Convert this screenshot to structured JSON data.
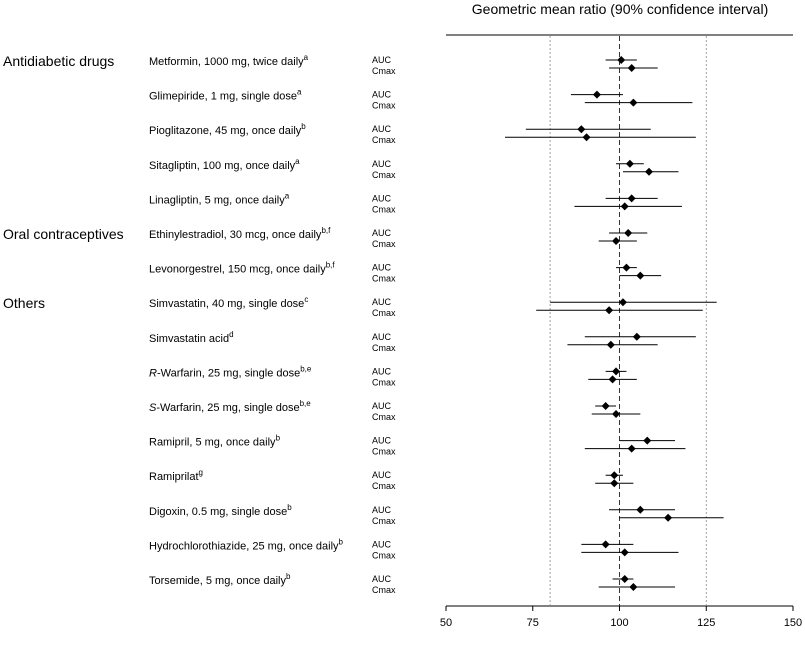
{
  "chart_data": {
    "type": "forest",
    "title": "Geometric mean ratio (90% confidence interval)",
    "xlim": [
      50,
      150
    ],
    "x_ticks": [
      "50",
      "75",
      "100",
      "125",
      "150"
    ],
    "reference_line": 100,
    "bound_lines": [
      80,
      125
    ],
    "metric_labels": [
      "AUC",
      "Cmax"
    ],
    "groups": [
      {
        "name": "Antidiabetic drugs",
        "drugs": [
          {
            "label": "Metformin, 1000 mg, twice daily",
            "sup": "a",
            "auc": {
              "gmr": 100.5,
              "lo": 96,
              "hi": 105
            },
            "cmax": {
              "gmr": 103.5,
              "lo": 97,
              "hi": 111
            }
          },
          {
            "label": "Glimepiride, 1 mg, single dose",
            "sup": "a",
            "auc": {
              "gmr": 93.5,
              "lo": 86,
              "hi": 101
            },
            "cmax": {
              "gmr": 104,
              "lo": 90,
              "hi": 121
            }
          },
          {
            "label": "Pioglitazone, 45 mg, once daily",
            "sup": "b",
            "auc": {
              "gmr": 89,
              "lo": 73,
              "hi": 109
            },
            "cmax": {
              "gmr": 90.5,
              "lo": 67,
              "hi": 122
            }
          },
          {
            "label": "Sitagliptin, 100 mg, once daily",
            "sup": "a",
            "auc": {
              "gmr": 103,
              "lo": 99,
              "hi": 107
            },
            "cmax": {
              "gmr": 108.5,
              "lo": 101,
              "hi": 117
            }
          },
          {
            "label": "Linagliptin, 5 mg, once daily",
            "sup": "a",
            "auc": {
              "gmr": 103.5,
              "lo": 96,
              "hi": 111
            },
            "cmax": {
              "gmr": 101.5,
              "lo": 87,
              "hi": 118
            }
          }
        ]
      },
      {
        "name": "Oral contraceptives",
        "drugs": [
          {
            "label": "Ethinylestradiol, 30 mcg, once daily",
            "sup": "b,f",
            "auc": {
              "gmr": 102.5,
              "lo": 97,
              "hi": 108
            },
            "cmax": {
              "gmr": 99,
              "lo": 94,
              "hi": 105
            }
          },
          {
            "label": "Levonorgestrel, 150 mcg, once daily",
            "sup": "b,f",
            "auc": {
              "gmr": 102,
              "lo": 99,
              "hi": 105
            },
            "cmax": {
              "gmr": 106,
              "lo": 100,
              "hi": 112
            }
          }
        ]
      },
      {
        "name": "Others",
        "drugs": [
          {
            "label": "Simvastatin, 40 mg, single dose",
            "sup": "c",
            "auc": {
              "gmr": 101,
              "lo": 80,
              "hi": 128
            },
            "cmax": {
              "gmr": 97,
              "lo": 76,
              "hi": 124
            }
          },
          {
            "label": "Simvastatin acid",
            "sup": "d",
            "auc": {
              "gmr": 105,
              "lo": 90,
              "hi": 122
            },
            "cmax": {
              "gmr": 97.5,
              "lo": 85,
              "hi": 111
            }
          },
          {
            "label": "R-Warfarin, 25 mg, single dose",
            "prefix": "R",
            "sup": "b,e",
            "auc": {
              "gmr": 99,
              "lo": 96,
              "hi": 102
            },
            "cmax": {
              "gmr": 98,
              "lo": 91,
              "hi": 105
            }
          },
          {
            "label": "S-Warfarin, 25 mg, single dose",
            "prefix": "S",
            "sup": "b,e",
            "auc": {
              "gmr": 96,
              "lo": 93,
              "hi": 99
            },
            "cmax": {
              "gmr": 99,
              "lo": 92,
              "hi": 106
            }
          },
          {
            "label": "Ramipril, 5 mg, once daily",
            "sup": "b",
            "auc": {
              "gmr": 108,
              "lo": 100,
              "hi": 116
            },
            "cmax": {
              "gmr": 103.5,
              "lo": 90,
              "hi": 119
            }
          },
          {
            "label": "Ramiprilat",
            "sup": "g",
            "auc": {
              "gmr": 98.5,
              "lo": 96,
              "hi": 101
            },
            "cmax": {
              "gmr": 98.5,
              "lo": 93,
              "hi": 104
            }
          },
          {
            "label": "Digoxin, 0.5 mg, single dose",
            "sup": "b",
            "auc": {
              "gmr": 106,
              "lo": 97,
              "hi": 116
            },
            "cmax": {
              "gmr": 114,
              "lo": 100,
              "hi": 130
            }
          },
          {
            "label": "Hydrochlorothiazide, 25 mg, once daily",
            "sup": "b",
            "auc": {
              "gmr": 96,
              "lo": 89,
              "hi": 104
            },
            "cmax": {
              "gmr": 101.5,
              "lo": 89,
              "hi": 117
            }
          },
          {
            "label": "Torsemide, 5 mg, once daily",
            "sup": "b",
            "auc": {
              "gmr": 101.5,
              "lo": 98,
              "hi": 104
            },
            "cmax": {
              "gmr": 104,
              "lo": 94,
              "hi": 116
            }
          }
        ]
      }
    ]
  }
}
